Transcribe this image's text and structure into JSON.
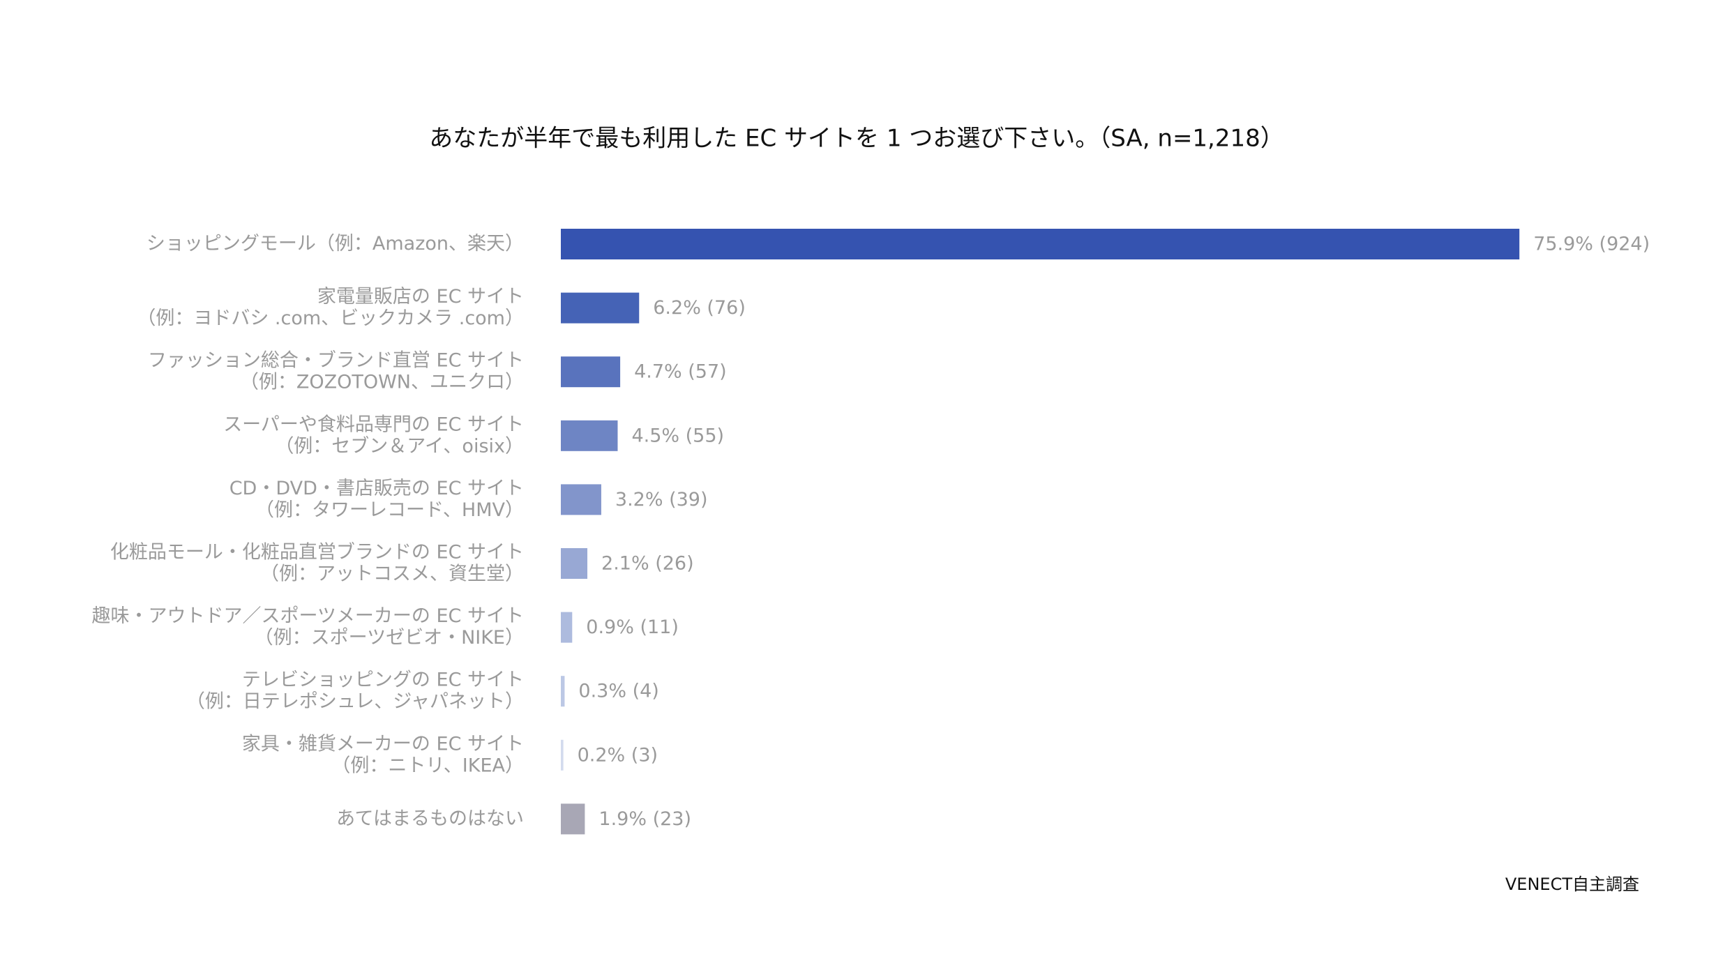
{
  "chart_data": {
    "type": "bar",
    "orientation": "horizontal",
    "title": "あなたが半年で最も利用した EC サイトを 1 つお選び下さい。（SA, n=1,218）",
    "categories": [
      [
        "ショッピングモール（例：Amazon、楽天）"
      ],
      [
        "家電量販店の EC サイト",
        "（例：ヨドバシ .com、ビックカメラ .com）"
      ],
      [
        "ファッション総合・ブランド直営 EC サイト",
        "（例：ZOZOTOWN、ユニクロ）"
      ],
      [
        "スーパーや食料品専門の EC サイト",
        "（例：セブン＆アイ、oisix）"
      ],
      [
        "CD・DVD・書店販売の EC サイト",
        "（例：タワーレコード、HMV）"
      ],
      [
        "化粧品モール・化粧品直営ブランドの EC サイト",
        "（例：アットコスメ、資生堂）"
      ],
      [
        "趣味・アウトドア／スポーツメーカーの EC サイト",
        "（例：スポーツゼビオ・NIKE）"
      ],
      [
        "テレビショッピングの EC サイト",
        "（例：日テレポシュレ、ジャパネット）"
      ],
      [
        "家具・雑貨メーカーの EC サイト",
        "（例：ニトリ、IKEA）"
      ],
      [
        "あてはまるものはない"
      ]
    ],
    "values": [
      75.9,
      6.2,
      4.7,
      4.5,
      3.2,
      2.1,
      0.9,
      0.3,
      0.2,
      1.9
    ],
    "value_labels": [
      "75.9% (924)",
      "6.2% (76)",
      "4.7% (57)",
      "4.5% (55)",
      "3.2% (39)",
      "2.1% (26)",
      "0.9% (11)",
      "0.3% (4)",
      "0.2% (3)",
      "1.9% (23)"
    ],
    "colors": [
      "#3553b0",
      "#4563b6",
      "#5973bd",
      "#6e85c4",
      "#8295cb",
      "#98a8d4",
      "#adbbde",
      "#bcc8e5",
      "#d3dbee",
      "#a8a7b5"
    ],
    "xlim": [
      0,
      76
    ],
    "source": "VENECT自主調査"
  }
}
